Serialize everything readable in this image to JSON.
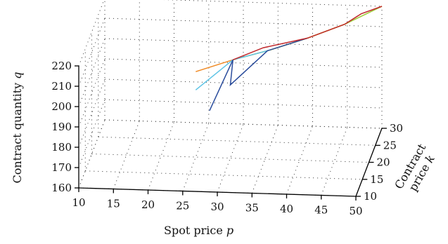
{
  "chart_data": {
    "type": "line",
    "projection": "3d",
    "grid": true,
    "legend": "none",
    "xlabel": "Spot price p",
    "xlabel_text": "Spot price ",
    "xlabel_symbol": "p",
    "ylabel": "Contract price k",
    "ylabel_line1": "Contract",
    "ylabel_line2": "price ",
    "ylabel_symbol": "k",
    "zlabel": "Contract quantity q",
    "zlabel_text": "Contract quantity ",
    "zlabel_symbol": "q",
    "xlim": [
      10,
      50
    ],
    "ylim": [
      10,
      30
    ],
    "zlim": [
      160,
      220
    ],
    "x_ticks": [
      "10",
      "15",
      "20",
      "25",
      "30",
      "35",
      "40",
      "45",
      "50"
    ],
    "y_ticks": [
      "10",
      "15",
      "20",
      "25",
      "30"
    ],
    "z_ticks": [
      "160",
      "170",
      "180",
      "190",
      "200",
      "210",
      "220"
    ],
    "series": [
      {
        "color": "#f08a24",
        "points": [
          [
            25,
            20,
            202
          ],
          [
            30,
            22,
            205
          ],
          [
            35,
            24,
            207
          ],
          [
            40,
            26,
            210
          ],
          [
            45,
            28,
            214
          ],
          [
            50,
            30,
            220
          ]
        ]
      },
      {
        "color": "#e8e020",
        "points": [
          [
            40,
            26,
            210
          ],
          [
            45,
            28,
            214
          ],
          [
            50,
            30,
            220
          ]
        ]
      },
      {
        "color": "#9ad04a",
        "points": [
          [
            30,
            22,
            205
          ],
          [
            35,
            24,
            207
          ],
          [
            40,
            26,
            210
          ],
          [
            45,
            28,
            214
          ],
          [
            50,
            30,
            220
          ]
        ]
      },
      {
        "color": "#5ec4e6",
        "points": [
          [
            25,
            20,
            193
          ],
          [
            30,
            22,
            205
          ],
          [
            35,
            24,
            207
          ]
        ]
      },
      {
        "color": "#2a4c9c",
        "points": [
          [
            27,
            20,
            183
          ],
          [
            30,
            22,
            205
          ],
          [
            30,
            20,
            196
          ],
          [
            35,
            22,
            210
          ],
          [
            40,
            26,
            210
          ]
        ]
      },
      {
        "color": "#c0282c",
        "points": [
          [
            30,
            22,
            205
          ],
          [
            34,
            24,
            208
          ],
          [
            40,
            26,
            210
          ],
          [
            45,
            28,
            214
          ],
          [
            47,
            30,
            216
          ],
          [
            50,
            30,
            220
          ]
        ]
      }
    ]
  }
}
